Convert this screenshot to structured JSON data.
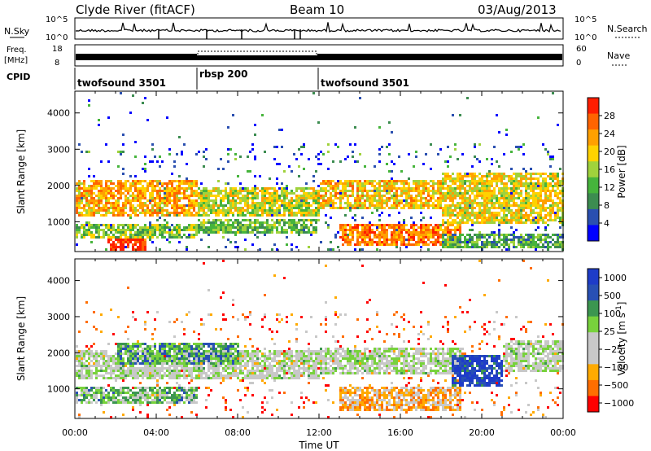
{
  "header": {
    "station": "Clyde River (fitACF)",
    "beam": "Beam 10",
    "date": "03/Aug/2013"
  },
  "sky_panel": {
    "left_label": "N.Sky",
    "right_label": "N.Search",
    "ytick_top": "10^5",
    "ytick_bottom": "10^0",
    "rtick_top": "10^5",
    "rtick_bottom": "10^0"
  },
  "freq_panel": {
    "left_label_1": "Freq.",
    "left_label_2": "[MHz]",
    "right_label": "Nave",
    "ytick_top": "18",
    "ytick_bottom": "8",
    "rtick_top": "60",
    "rtick_bottom": "0"
  },
  "cpid": {
    "label": "CPID",
    "segments": [
      {
        "name": "twofsound 3501",
        "start_hour": 0
      },
      {
        "name": "rbsp 200",
        "start_hour": 6
      },
      {
        "name": "twofsound 3501",
        "start_hour": 12
      }
    ]
  },
  "colors": {
    "power": [
      "#0000ff",
      "#2a4fb0",
      "#3c8c50",
      "#46b43c",
      "#a0d23c",
      "#ffd200",
      "#ffa000",
      "#ff6400",
      "#ff1e00"
    ],
    "velocity": [
      "#ff0000",
      "#ff6e00",
      "#ffaa00",
      "#c8c8c8",
      "#c8c8c8",
      "#78d23c",
      "#3c9650",
      "#2850b4",
      "#1e3cc8"
    ]
  },
  "chart_data": [
    {
      "type": "heatmap",
      "panel": "power",
      "ylabel": "Slant Range [km]",
      "ylim": [
        180,
        4600
      ],
      "yticks": [
        1000,
        2000,
        3000,
        4000
      ],
      "xlim_hours": [
        0,
        24
      ],
      "colorbar_label": "Power [dB]",
      "colorbar_ticks": [
        4,
        8,
        12,
        16,
        20,
        24,
        28
      ],
      "colorbar_range": [
        0,
        32
      ],
      "bands": [
        {
          "t0": 0,
          "t1": 6,
          "r0": 1200,
          "r1": 2200,
          "level": 0.7
        },
        {
          "t0": 0,
          "t1": 6,
          "r0": 600,
          "r1": 1000,
          "level": 0.45
        },
        {
          "t0": 1.5,
          "t1": 3.5,
          "r0": 250,
          "r1": 600,
          "level": 0.95
        },
        {
          "t0": 6,
          "t1": 12,
          "r0": 1200,
          "r1": 2000,
          "level": 0.55
        },
        {
          "t0": 6,
          "t1": 12,
          "r0": 700,
          "r1": 1100,
          "level": 0.4
        },
        {
          "t0": 12,
          "t1": 18,
          "r0": 1400,
          "r1": 2200,
          "level": 0.65
        },
        {
          "t0": 13,
          "t1": 19,
          "r0": 400,
          "r1": 1000,
          "level": 0.8
        },
        {
          "t0": 18,
          "t1": 24,
          "r0": 1000,
          "r1": 2400,
          "level": 0.6
        },
        {
          "t0": 18,
          "t1": 24,
          "r0": 300,
          "r1": 700,
          "level": 0.35
        }
      ]
    },
    {
      "type": "heatmap",
      "panel": "velocity",
      "ylabel": "Slant Range [km]",
      "ylim": [
        180,
        4600
      ],
      "yticks": [
        1000,
        2000,
        3000,
        4000
      ],
      "xlim_hours": [
        0,
        24
      ],
      "xticks": [
        "00:00",
        "04:00",
        "08:00",
        "12:00",
        "16:00",
        "20:00",
        "00:00"
      ],
      "xlabel": "Time UT",
      "colorbar_label": "Velocity [m s^-1]",
      "colorbar_ticks": [
        1000,
        500,
        100,
        25,
        -25,
        -100,
        -500,
        -1000
      ],
      "bands": [
        {
          "t0": 0,
          "t1": 12,
          "r0": 1300,
          "r1": 2100,
          "level": 0.5
        },
        {
          "t0": 2,
          "t1": 8,
          "r0": 1700,
          "r1": 2300,
          "level": 0.7
        },
        {
          "t0": 0,
          "t1": 6,
          "r0": 600,
          "r1": 1100,
          "level": 0.62
        },
        {
          "t0": 12,
          "t1": 19,
          "r0": 1400,
          "r1": 2200,
          "level": 0.5
        },
        {
          "t0": 13,
          "t1": 19,
          "r0": 400,
          "r1": 1100,
          "level": 0.3
        },
        {
          "t0": 18.5,
          "t1": 21,
          "r0": 1100,
          "r1": 2000,
          "level": 0.92
        },
        {
          "t0": 21,
          "t1": 24,
          "r0": 1500,
          "r1": 2400,
          "level": 0.5
        }
      ]
    }
  ]
}
